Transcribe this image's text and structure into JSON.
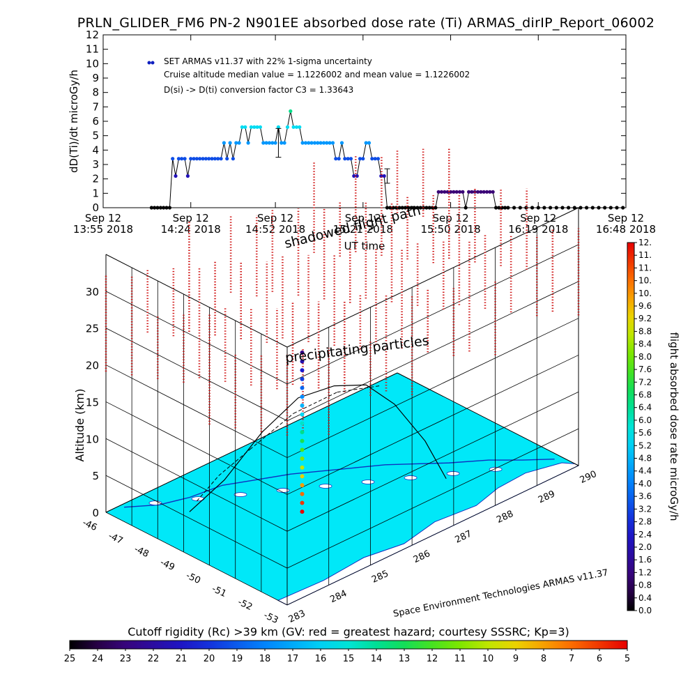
{
  "title": "PRLN_GLIDER_FM6 PN-2 N901EE absorbed dose rate (Ti) ARMAS_dirIP_Report_06002",
  "chart_data": [
    {
      "type": "line",
      "ylabel": "dD(Ti)/dt microGy/h",
      "xlabel": "UT time",
      "ylim": [
        0,
        12
      ],
      "y_ticks": [
        "0",
        "1",
        "2",
        "3",
        "4",
        "5",
        "6",
        "7",
        "8",
        "9",
        "10",
        "11",
        "12"
      ],
      "x_ticks": [
        {
          "line1": "Sep 12",
          "line2": "13:55 2018"
        },
        {
          "line1": "Sep 12",
          "line2": "14:24 2018"
        },
        {
          "line1": "Sep 12",
          "line2": "14:52 2018"
        },
        {
          "line1": "Sep 12",
          "line2": "15:21 2018"
        },
        {
          "line1": "Sep 12",
          "line2": "15:50 2018"
        },
        {
          "line1": "Sep 12",
          "line2": "16:19 2018"
        },
        {
          "line1": "Sep 12",
          "line2": "16:48 2018"
        }
      ],
      "x_minutes": [
        0,
        29,
        57,
        86,
        115,
        144,
        173
      ],
      "legend": {
        "series_label": "SET ARMAS v11.37 with 22% 1-sigma uncertainty",
        "median_line": "Cruise altitude median value = 1.1226002 and mean value = 1.1226002",
        "conversion_line": "D(si) -> D(ti) conversion factor C3 = 1.33643",
        "placement": "top-left"
      },
      "series": [
        {
          "name": "SET ARMAS v11.37",
          "points": [
            [
              16,
              0
            ],
            [
              17,
              0
            ],
            [
              18,
              0
            ],
            [
              19,
              0
            ],
            [
              20,
              0
            ],
            [
              21,
              0
            ],
            [
              22,
              0
            ],
            [
              23,
              3.4
            ],
            [
              24,
              2.2
            ],
            [
              25,
              3.4
            ],
            [
              26,
              3.4
            ],
            [
              27,
              3.4
            ],
            [
              28,
              2.2
            ],
            [
              29,
              3.4
            ],
            [
              30,
              3.4
            ],
            [
              31,
              3.4
            ],
            [
              32,
              3.4
            ],
            [
              33,
              3.4
            ],
            [
              34,
              3.4
            ],
            [
              35,
              3.4
            ],
            [
              36,
              3.4
            ],
            [
              37,
              3.4
            ],
            [
              38,
              3.4
            ],
            [
              39,
              3.4
            ],
            [
              40,
              4.5
            ],
            [
              41,
              3.4
            ],
            [
              42,
              4.5
            ],
            [
              43,
              3.4
            ],
            [
              44,
              4.5
            ],
            [
              45,
              4.5
            ],
            [
              46,
              5.6
            ],
            [
              47,
              5.6
            ],
            [
              48,
              4.5
            ],
            [
              49,
              5.6
            ],
            [
              50,
              5.6
            ],
            [
              51,
              5.6
            ],
            [
              52,
              5.6
            ],
            [
              53,
              4.5
            ],
            [
              54,
              4.5
            ],
            [
              55,
              4.5
            ],
            [
              56,
              4.5
            ],
            [
              57,
              4.5
            ],
            [
              58,
              5.6
            ],
            [
              59,
              4.5
            ],
            [
              60,
              4.5
            ],
            [
              61,
              5.6
            ],
            [
              62,
              6.7
            ],
            [
              63,
              5.6
            ],
            [
              64,
              5.6
            ],
            [
              65,
              5.6
            ],
            [
              66,
              4.5
            ],
            [
              67,
              4.5
            ],
            [
              68,
              4.5
            ],
            [
              69,
              4.5
            ],
            [
              70,
              4.5
            ],
            [
              71,
              4.5
            ],
            [
              72,
              4.5
            ],
            [
              73,
              4.5
            ],
            [
              74,
              4.5
            ],
            [
              75,
              4.5
            ],
            [
              76,
              4.5
            ],
            [
              77,
              3.4
            ],
            [
              78,
              3.4
            ],
            [
              79,
              4.5
            ],
            [
              80,
              3.4
            ],
            [
              81,
              3.4
            ],
            [
              82,
              3.4
            ],
            [
              83,
              2.2
            ],
            [
              84,
              2.2
            ],
            [
              85,
              3.4
            ],
            [
              86,
              3.4
            ],
            [
              87,
              4.5
            ],
            [
              88,
              4.5
            ],
            [
              89,
              3.4
            ],
            [
              90,
              3.4
            ],
            [
              91,
              3.4
            ],
            [
              92,
              2.2
            ],
            [
              93,
              2.2
            ],
            [
              94,
              0
            ],
            [
              95,
              0
            ],
            [
              96,
              0
            ],
            [
              97,
              0
            ],
            [
              98,
              0
            ],
            [
              99,
              0
            ],
            [
              100,
              0
            ],
            [
              101,
              0
            ],
            [
              102,
              0
            ],
            [
              103,
              0
            ],
            [
              104,
              0
            ],
            [
              105,
              0
            ],
            [
              106,
              0
            ],
            [
              107,
              0
            ],
            [
              108,
              0
            ],
            [
              109,
              0
            ],
            [
              110,
              0
            ],
            [
              111,
              1.1
            ],
            [
              112,
              1.1
            ],
            [
              113,
              1.1
            ],
            [
              114,
              1.1
            ],
            [
              115,
              1.1
            ],
            [
              116,
              1.1
            ],
            [
              117,
              1.1
            ],
            [
              118,
              1.1
            ],
            [
              119,
              1.1
            ],
            [
              120,
              0
            ],
            [
              121,
              1.1
            ],
            [
              122,
              1.1
            ],
            [
              123,
              1.1
            ],
            [
              124,
              1.1
            ],
            [
              125,
              1.1
            ],
            [
              126,
              1.1
            ],
            [
              127,
              1.1
            ],
            [
              128,
              1.1
            ],
            [
              129,
              1.1
            ],
            [
              130,
              0
            ],
            [
              131,
              0
            ],
            [
              132,
              0
            ],
            [
              133,
              0
            ],
            [
              134,
              0
            ],
            [
              136,
              0
            ],
            [
              138,
              0
            ],
            [
              140,
              0
            ],
            [
              142,
              0
            ],
            [
              144,
              0
            ],
            [
              146,
              0
            ],
            [
              148,
              0
            ],
            [
              150,
              0
            ],
            [
              152,
              0
            ],
            [
              154,
              0
            ],
            [
              156,
              0
            ],
            [
              158,
              0
            ],
            [
              160,
              0
            ],
            [
              162,
              0
            ],
            [
              164,
              0
            ],
            [
              166,
              0
            ],
            [
              168,
              0
            ],
            [
              170,
              0
            ],
            [
              172,
              0
            ]
          ]
        }
      ],
      "error_bars": [
        {
          "x": 58,
          "y": 4.5,
          "low": 3.5,
          "high": 5.5
        },
        {
          "x": 94,
          "y": 2.2,
          "low": 1.7,
          "high": 2.7
        }
      ]
    },
    {
      "type": "scatter",
      "zlabel": "Altitude (km)",
      "z_ticks": [
        "0",
        "5",
        "10",
        "15",
        "20",
        "25",
        "30"
      ],
      "lat_ticks": [
        "-46",
        "-47",
        "-48",
        "-49",
        "-50",
        "-51",
        "-52",
        "-53"
      ],
      "lon_ticks": [
        "283",
        "284",
        "285",
        "286",
        "287",
        "288",
        "289",
        "290"
      ],
      "annotations": [
        "shadowed flight path",
        "precipitating particles"
      ],
      "credit": "Space Environment Technologies ARMAS v11.37",
      "colorbar_dose": {
        "label": "flight absorbed dose rate microGy/h",
        "ticks": [
          "0.0",
          "0.4",
          "0.8",
          "1.2",
          "1.6",
          "2.0",
          "2.4",
          "2.8",
          "3.2",
          "3.6",
          "4.0",
          "4.4",
          "4.8",
          "5.2",
          "5.6",
          "6.0",
          "6.4",
          "6.8",
          "7.2",
          "7.6",
          "8.0",
          "8.4",
          "8.8",
          "9.2",
          "9.6",
          "10.",
          "10.",
          "11.",
          "11.",
          "12."
        ]
      },
      "colorbar_rigidity": {
        "label": "Cutoff rigidity (Rc) >39 km (GV: red = greatest hazard; courtesy SSSRC; Kp=3)",
        "ticks": [
          "25",
          "24",
          "23",
          "22",
          "21",
          "20",
          "19",
          "18",
          "17",
          "16",
          "15",
          "14",
          "13",
          "12",
          "11",
          "10",
          "9",
          "8",
          "7",
          "6",
          "5"
        ]
      },
      "colors": {
        "ocean": "#00e8f8",
        "land": "#ffffff",
        "coast": "#1030c0",
        "rigidity_marks": "#d01818",
        "track": "#000000"
      }
    }
  ]
}
